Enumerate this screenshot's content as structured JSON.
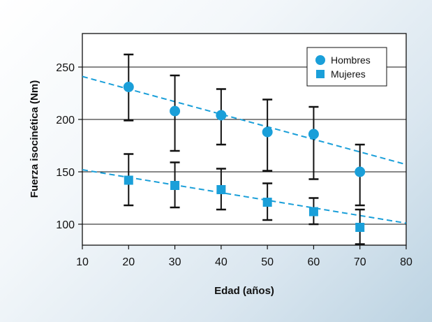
{
  "chart_data": {
    "type": "scatter",
    "xlabel": "Edad (años)",
    "ylabel": "Fuerza isocinética (Nm)",
    "xlim": [
      10,
      80
    ],
    "ylim": [
      80,
      282
    ],
    "xticks": [
      10,
      20,
      30,
      40,
      50,
      60,
      70,
      80
    ],
    "yticks": [
      100,
      150,
      200,
      250
    ],
    "grid": "horizontal",
    "legend_position": "top-right",
    "series": [
      {
        "name": "Hombres",
        "marker": "circle",
        "color": "#1a9fd9",
        "x": [
          20,
          30,
          40,
          50,
          60,
          70
        ],
        "y": [
          231,
          208,
          204,
          188,
          186,
          150
        ],
        "err_low": [
          199,
          170,
          176,
          151,
          143,
          118
        ],
        "err_high": [
          262,
          242,
          229,
          219,
          212,
          176
        ],
        "trend": {
          "x": [
            10,
            80
          ],
          "y": [
            241,
            157
          ]
        }
      },
      {
        "name": "Mujeres",
        "marker": "square",
        "color": "#1a9fd9",
        "x": [
          20,
          30,
          40,
          50,
          60,
          70
        ],
        "y": [
          142,
          137,
          133,
          121,
          112,
          97
        ],
        "err_low": [
          118,
          116,
          114,
          104,
          100,
          81
        ],
        "err_high": [
          167,
          159,
          153,
          139,
          125,
          114
        ],
        "trend": {
          "x": [
            10,
            80
          ],
          "y": [
            152,
            101
          ]
        }
      }
    ]
  }
}
